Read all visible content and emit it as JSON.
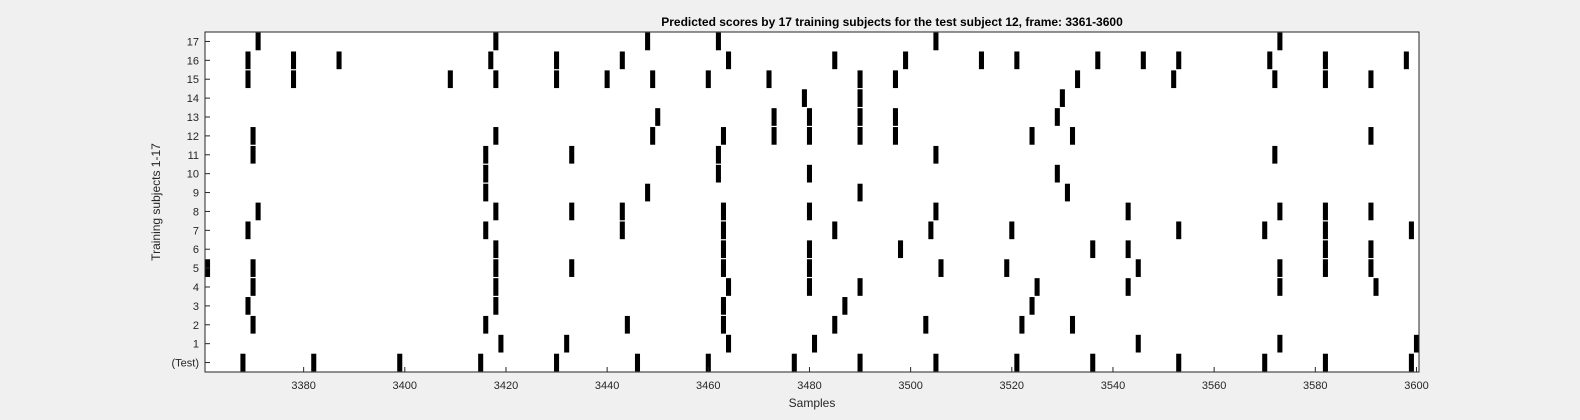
{
  "chart_data": {
    "type": "heatmap",
    "title": "Predicted scores by 17 training subjects for the test subject 12, frame: 3361-3600",
    "xlabel": "Samples",
    "ylabel": "Training subjects 1-17",
    "xlim": [
      3361,
      3600
    ],
    "xticks": [
      3380,
      3400,
      3420,
      3440,
      3460,
      3480,
      3500,
      3520,
      3540,
      3560,
      3580,
      3600
    ],
    "rows": [
      {
        "label": "(Test)",
        "x": [
          3368,
          3382,
          3399,
          3415,
          3430,
          3446,
          3460,
          3477,
          3490,
          3505,
          3521,
          3536,
          3553,
          3570,
          3582,
          3599
        ]
      },
      {
        "label": "1",
        "x": [
          3419,
          3432,
          3464,
          3481,
          3545,
          3573,
          3600
        ]
      },
      {
        "label": "2",
        "x": [
          3370,
          3416,
          3444,
          3463,
          3485,
          3503,
          3522,
          3532
        ]
      },
      {
        "label": "3",
        "x": [
          3369,
          3418,
          3463,
          3487,
          3524
        ]
      },
      {
        "label": "4",
        "x": [
          3370,
          3418,
          3464,
          3480,
          3490,
          3525,
          3543,
          3573,
          3592
        ]
      },
      {
        "label": "5",
        "x": [
          3361,
          3370,
          3418,
          3433,
          3463,
          3480,
          3506,
          3519,
          3545,
          3573,
          3582,
          3591
        ]
      },
      {
        "label": "6",
        "x": [
          3418,
          3463,
          3480,
          3498,
          3536,
          3543,
          3582,
          3591
        ]
      },
      {
        "label": "7",
        "x": [
          3369,
          3416,
          3443,
          3463,
          3485,
          3504,
          3520,
          3553,
          3570,
          3582,
          3599
        ]
      },
      {
        "label": "8",
        "x": [
          3371,
          3418,
          3433,
          3443,
          3463,
          3480,
          3505,
          3543,
          3573,
          3582,
          3591
        ]
      },
      {
        "label": "9",
        "x": [
          3416,
          3448,
          3490,
          3531
        ]
      },
      {
        "label": "10",
        "x": [
          3416,
          3462,
          3480,
          3529
        ]
      },
      {
        "label": "11",
        "x": [
          3370,
          3416,
          3433,
          3462,
          3505,
          3572
        ]
      },
      {
        "label": "12",
        "x": [
          3370,
          3418,
          3449,
          3463,
          3473,
          3480,
          3490,
          3497,
          3524,
          3532,
          3591
        ]
      },
      {
        "label": "13",
        "x": [
          3450,
          3473,
          3480,
          3490,
          3497,
          3529
        ]
      },
      {
        "label": "14",
        "x": [
          3479,
          3490,
          3530
        ]
      },
      {
        "label": "15",
        "x": [
          3369,
          3378,
          3409,
          3418,
          3430,
          3440,
          3449,
          3460,
          3472,
          3490,
          3497,
          3533,
          3552,
          3572,
          3582,
          3591
        ]
      },
      {
        "label": "16",
        "x": [
          3369,
          3378,
          3387,
          3417,
          3430,
          3443,
          3464,
          3485,
          3499,
          3514,
          3521,
          3537,
          3546,
          3553,
          3571,
          3582,
          3598
        ]
      },
      {
        "label": "17",
        "x": [
          3371,
          3418,
          3448,
          3462,
          3505,
          3573
        ]
      }
    ],
    "colors": {
      "mark": "#000000",
      "plot_bg": "#ffffff",
      "figure_bg": "#f0f0f0",
      "axis": "#262626"
    },
    "grid": false,
    "legend": "none"
  }
}
